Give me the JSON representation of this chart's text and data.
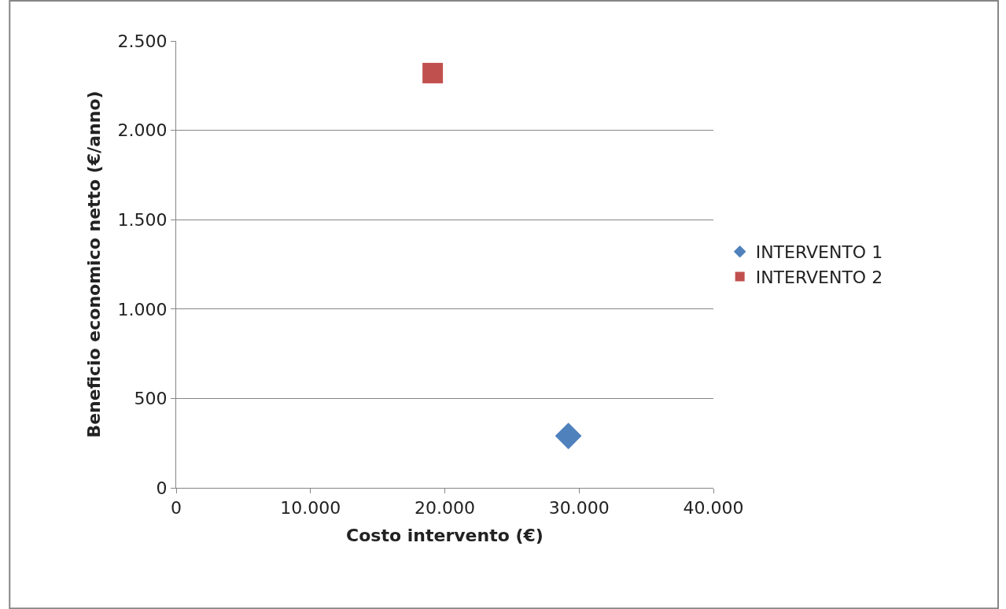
{
  "chart_data": {
    "type": "scatter",
    "xlabel": "Costo intervento (€)",
    "ylabel": "Beneficio economico netto (€/anno)",
    "xlim": [
      0,
      40000
    ],
    "xticks": [
      0,
      {
        "value": 10000,
        "label": "10.000"
      },
      {
        "value": 20000,
        "label": "20.000"
      },
      {
        "value": 30000,
        "label": "30.000"
      },
      {
        "value": 40000,
        "label": "40.000"
      }
    ],
    "ylim": [
      0,
      2500
    ],
    "yticks": [
      0,
      500,
      {
        "value": 1000,
        "label": "1.000"
      },
      {
        "value": 1500,
        "label": "1.500"
      },
      {
        "value": 2000,
        "label": "2.000"
      },
      {
        "value": 2500,
        "label": "2.500"
      }
    ],
    "grid": "y",
    "legend": "right",
    "series": [
      {
        "name": "INTERVENTO 1",
        "color": "#4f81bd",
        "marker": "diamond",
        "x": [
          29200
        ],
        "values": [
          290
        ]
      },
      {
        "name": "INTERVENTO 2",
        "color": "#c0504d",
        "marker": "square",
        "x": [
          19100
        ],
        "values": [
          2320
        ]
      }
    ]
  }
}
